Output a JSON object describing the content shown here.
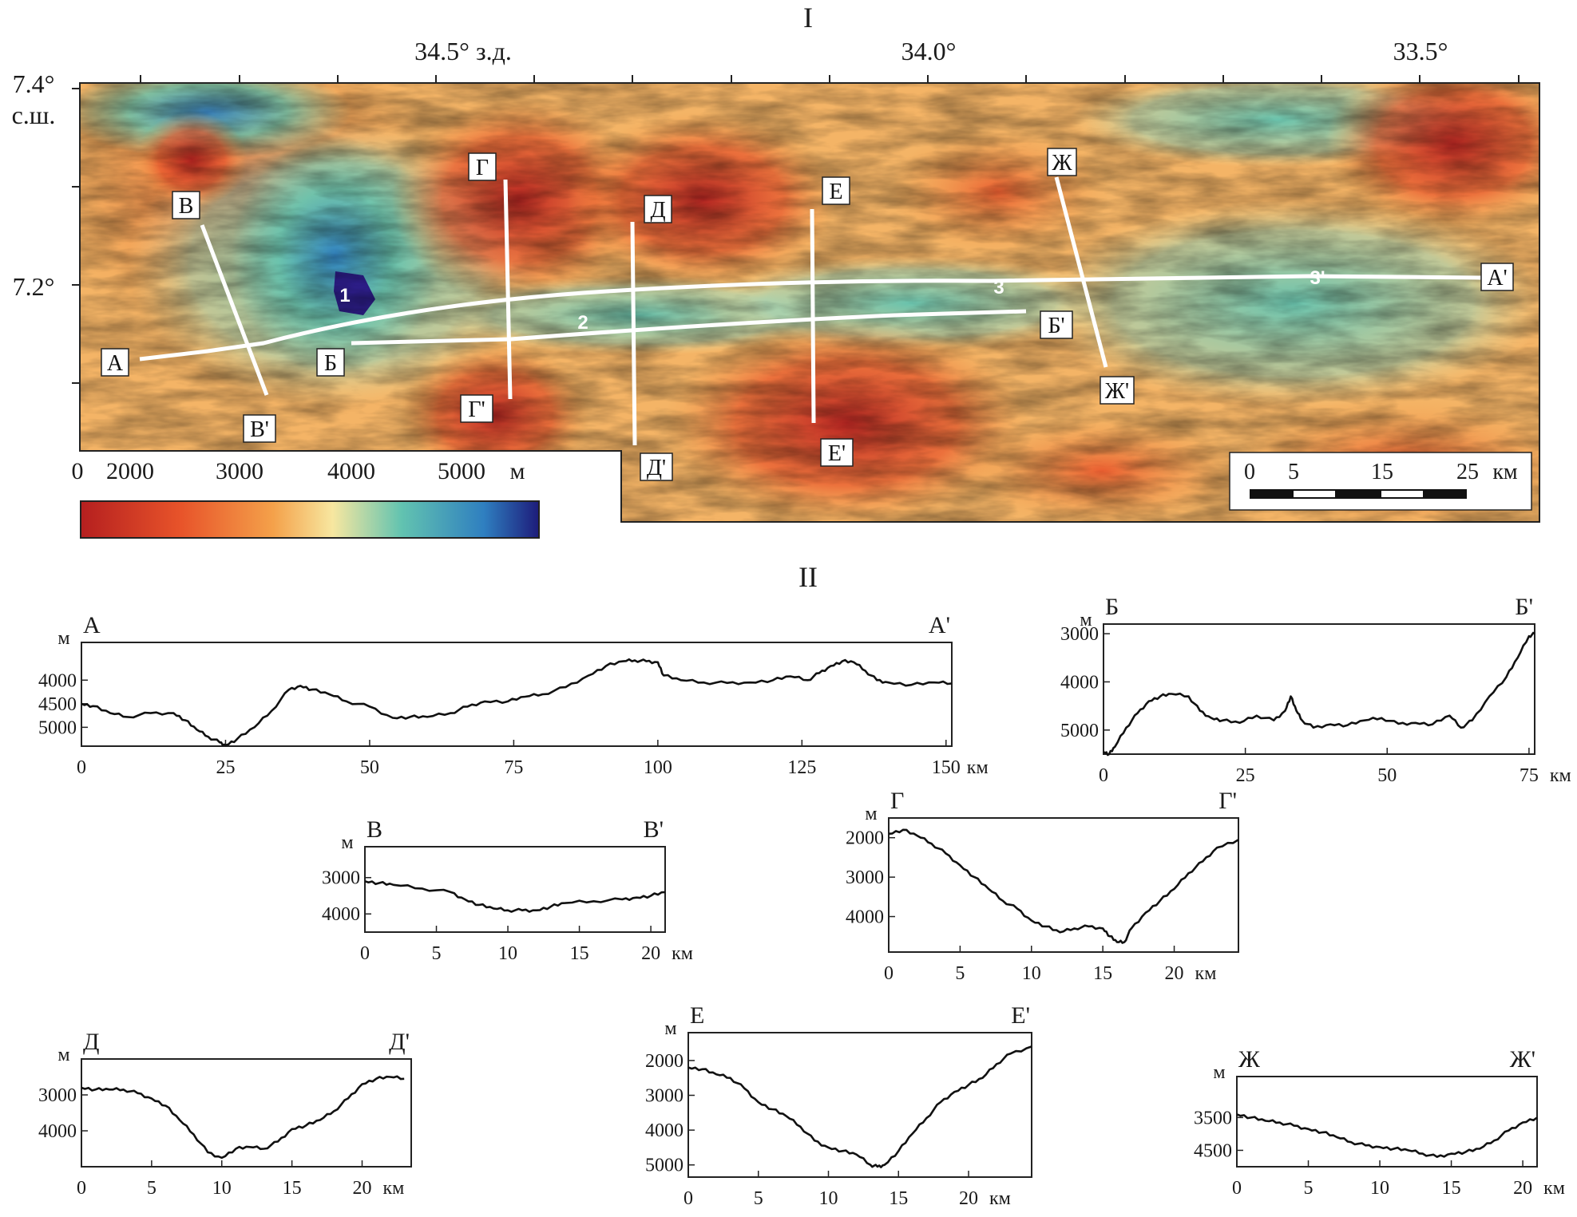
{
  "figure": {
    "part1_label": "I",
    "part2_label": "II"
  },
  "map": {
    "lon_labels": [
      "34.5° з.д.",
      "34.0°",
      "33.5°"
    ],
    "lat_labels": [
      "7.4°",
      "с.ш.",
      "7.2°"
    ],
    "point_labels": [
      "1",
      "2",
      "3",
      "3'"
    ],
    "profile_labels": {
      "A": "А",
      "A2": "А'",
      "B": "Б",
      "B2": "Б'",
      "V": "В",
      "V2": "В'",
      "G": "Г",
      "G2": "Г'",
      "D": "Д",
      "D2": "Д'",
      "E": "Е",
      "E2": "Е'",
      "ZH": "Ж",
      "ZH2": "Ж'"
    },
    "colorbar": {
      "ticks": [
        "0",
        "2000",
        "3000",
        "4000",
        "5000"
      ],
      "unit": "м",
      "colors": [
        "#b51f1f",
        "#e8542a",
        "#f4a14a",
        "#f7e7a0",
        "#62c3b0",
        "#2f7fc0",
        "#1d1b7a"
      ]
    },
    "scalebar": {
      "ticks": [
        "0",
        "5",
        "15",
        "25"
      ],
      "unit": "км"
    }
  },
  "chart_data": [
    {
      "type": "line",
      "id": "A",
      "title_left": "А",
      "title_right": "А'",
      "ylabel": "м",
      "xlabel": "км",
      "x_ticks": [
        "0",
        "25",
        "50",
        "75",
        "100",
        "125",
        "150"
      ],
      "y_ticks": [
        "4000",
        "4500",
        "5000"
      ],
      "xlim": [
        0,
        151
      ],
      "ylim": [
        5400,
        3200
      ],
      "x": [
        0,
        2,
        5,
        8,
        12,
        16,
        18,
        20,
        22,
        24,
        25,
        27,
        30,
        33,
        36,
        38,
        40,
        43,
        46,
        50,
        54,
        57,
        60,
        64,
        67,
        70,
        74,
        77,
        80,
        84,
        88,
        91,
        94,
        96,
        98,
        100,
        101,
        104,
        108,
        112,
        116,
        120,
        123,
        126,
        128,
        130,
        132,
        134,
        136,
        138,
        140,
        144,
        148,
        151
      ],
      "y": [
        4500,
        4550,
        4700,
        4780,
        4700,
        4700,
        4850,
        5050,
        5200,
        5320,
        5380,
        5250,
        5000,
        4650,
        4200,
        4120,
        4200,
        4300,
        4450,
        4560,
        4800,
        4780,
        4780,
        4700,
        4560,
        4450,
        4450,
        4350,
        4300,
        4150,
        3900,
        3700,
        3600,
        3580,
        3600,
        3620,
        3900,
        4000,
        4050,
        4060,
        4050,
        4000,
        3920,
        4000,
        3850,
        3700,
        3600,
        3620,
        3800,
        4000,
        4050,
        4100,
        4050,
        4070
      ]
    },
    {
      "type": "line",
      "id": "B",
      "title_left": "Б",
      "title_right": "Б'",
      "ylabel": "м",
      "xlabel": "км",
      "x_ticks": [
        "0",
        "25",
        "50",
        "75"
      ],
      "y_ticks": [
        "3000",
        "4000",
        "5000"
      ],
      "xlim": [
        0,
        76
      ],
      "ylim": [
        5500,
        2800
      ],
      "x": [
        0,
        1,
        2,
        4,
        6,
        8,
        10,
        12,
        15,
        17,
        19,
        21,
        24,
        27,
        30,
        32,
        33,
        34,
        35,
        37,
        40,
        43,
        46,
        49,
        52,
        55,
        58,
        61,
        63,
        65,
        68,
        71,
        73,
        75,
        76
      ],
      "y": [
        5450,
        5500,
        5350,
        4950,
        4650,
        4400,
        4300,
        4250,
        4300,
        4600,
        4750,
        4800,
        4850,
        4700,
        4800,
        4600,
        4300,
        4600,
        4800,
        4950,
        4880,
        4900,
        4800,
        4750,
        4870,
        4850,
        4880,
        4700,
        4950,
        4800,
        4300,
        3900,
        3500,
        3050,
        3000
      ]
    },
    {
      "type": "line",
      "id": "V",
      "title_left": "В",
      "title_right": "В'",
      "ylabel": "м",
      "xlabel": "км",
      "x_ticks": [
        "0",
        "5",
        "10",
        "15",
        "20"
      ],
      "y_ticks": [
        "3000",
        "4000"
      ],
      "xlim": [
        0,
        21
      ],
      "ylim": [
        4500,
        2150
      ],
      "x": [
        0,
        1,
        2,
        4,
        6,
        7,
        8,
        9,
        10,
        11,
        12,
        13,
        14,
        16,
        18,
        19,
        20,
        21
      ],
      "y": [
        3100,
        3150,
        3200,
        3300,
        3400,
        3600,
        3750,
        3850,
        3900,
        3900,
        3900,
        3800,
        3700,
        3650,
        3600,
        3550,
        3500,
        3400
      ]
    },
    {
      "type": "line",
      "id": "G",
      "title_left": "Г",
      "title_right": "Г'",
      "ylabel": "м",
      "xlabel": "км",
      "x_ticks": [
        "0",
        "5",
        "10",
        "15",
        "20"
      ],
      "y_ticks": [
        "2000",
        "3000",
        "4000"
      ],
      "xlim": [
        0,
        24.5
      ],
      "ylim": [
        4900,
        1500
      ],
      "x": [
        0,
        1,
        2,
        3,
        4,
        5,
        6,
        7,
        8,
        9,
        10,
        11,
        12,
        13,
        14,
        15,
        15.5,
        16,
        16.5,
        17,
        18,
        19,
        20,
        21,
        22,
        23,
        24.5
      ],
      "y": [
        1900,
        1800,
        1950,
        2150,
        2400,
        2700,
        3000,
        3300,
        3600,
        3800,
        4100,
        4250,
        4400,
        4300,
        4250,
        4300,
        4500,
        4650,
        4650,
        4300,
        3900,
        3600,
        3300,
        2900,
        2600,
        2250,
        2050
      ]
    },
    {
      "type": "line",
      "id": "D",
      "title_left": "Д",
      "title_right": "Д'",
      "ylabel": "м",
      "xlabel": "км",
      "x_ticks": [
        "0",
        "5",
        "10",
        "15",
        "20"
      ],
      "y_ticks": [
        "3000",
        "4000"
      ],
      "xlim": [
        0,
        23.5
      ],
      "ylim": [
        5000,
        2000
      ],
      "x": [
        0,
        1,
        2,
        3,
        4,
        5,
        6,
        7,
        8,
        9,
        10,
        11,
        12,
        13,
        14,
        15,
        16,
        17,
        18,
        19,
        20,
        21,
        22,
        23
      ],
      "y": [
        2800,
        2850,
        2850,
        2850,
        2950,
        3100,
        3300,
        3700,
        4100,
        4600,
        4750,
        4500,
        4450,
        4500,
        4300,
        3950,
        3850,
        3700,
        3450,
        3100,
        2700,
        2550,
        2500,
        2550
      ]
    },
    {
      "type": "line",
      "id": "E",
      "title_left": "Е",
      "title_right": "Е'",
      "ylabel": "м",
      "xlabel": "км",
      "x_ticks": [
        "0",
        "5",
        "10",
        "15",
        "20"
      ],
      "y_ticks": [
        "2000",
        "3000",
        "4000",
        "5000"
      ],
      "xlim": [
        0,
        24.5
      ],
      "ylim": [
        5350,
        1200
      ],
      "x": [
        0,
        1,
        2,
        3,
        4,
        5,
        6,
        7,
        8,
        9,
        10,
        11,
        12,
        13,
        13.5,
        14,
        15,
        16,
        17,
        18,
        19,
        20,
        21,
        22,
        23,
        24.5
      ],
      "y": [
        2200,
        2250,
        2400,
        2500,
        2800,
        3200,
        3400,
        3600,
        3900,
        4300,
        4500,
        4600,
        4700,
        5000,
        5050,
        5000,
        4600,
        4100,
        3650,
        3200,
        2900,
        2700,
        2500,
        2100,
        1800,
        1600
      ]
    },
    {
      "type": "line",
      "id": "ZH",
      "title_left": "Ж",
      "title_right": "Ж'",
      "ylabel": "м",
      "xlabel": "км",
      "x_ticks": [
        "0",
        "5",
        "10",
        "15",
        "20"
      ],
      "y_ticks": [
        "3500",
        "4500"
      ],
      "xlim": [
        0,
        21
      ],
      "ylim": [
        5000,
        2250
      ],
      "x": [
        0,
        1,
        2,
        3,
        4,
        5,
        6,
        7,
        8,
        9,
        10,
        11,
        12,
        13,
        14,
        15,
        16,
        17,
        18,
        19,
        20,
        21
      ],
      "y": [
        3400,
        3500,
        3600,
        3650,
        3750,
        3850,
        3950,
        4100,
        4250,
        4350,
        4400,
        4450,
        4500,
        4600,
        4700,
        4600,
        4550,
        4450,
        4200,
        3900,
        3650,
        3500
      ]
    }
  ]
}
